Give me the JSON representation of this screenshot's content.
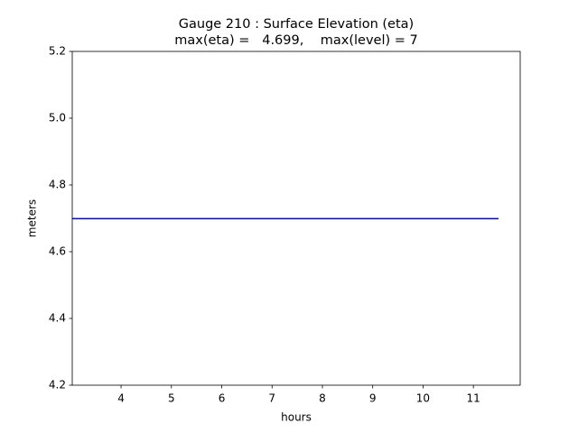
{
  "chart_data": {
    "type": "line",
    "title": "Gauge 210 : Surface Elevation (eta)",
    "subtitle": "max(eta) =   4.699,    max(level) = 7",
    "x_label": "hours",
    "y_label": "meters",
    "x": [
      3.03,
      11.5
    ],
    "series": [
      {
        "name": "eta",
        "color": "#0000ff",
        "values": [
          4.699,
          4.699
        ]
      }
    ],
    "xlim": [
      3.03,
      11.93
    ],
    "xticks": [
      4,
      5,
      6,
      7,
      8,
      9,
      10,
      11
    ],
    "ylim": [
      4.2,
      5.2
    ],
    "yticks": [
      4.2,
      4.4,
      4.6,
      4.8,
      {
        "value": 5,
        "label": "5.0"
      },
      5.2
    ],
    "grid": false
  }
}
